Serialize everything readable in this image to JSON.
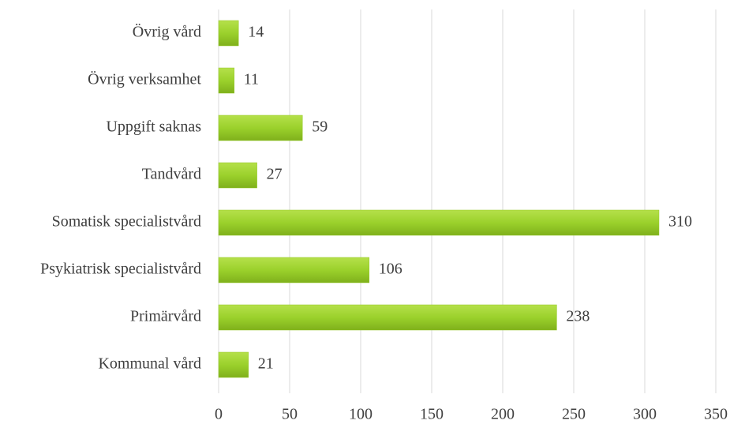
{
  "chart_data": {
    "type": "bar",
    "orientation": "horizontal",
    "categories": [
      "Övrig vård",
      "Övrig verksamhet",
      "Uppgift saknas",
      "Tandvård",
      "Somatisk specialistvård",
      "Psykiatrisk specialistvård",
      "Primärvård",
      "Kommunal vård"
    ],
    "values": [
      14,
      11,
      59,
      27,
      310,
      106,
      238,
      21
    ],
    "color": "#92c824",
    "xlim": [
      0,
      350
    ],
    "xticks": [
      0,
      50,
      100,
      150,
      200,
      250,
      300,
      350
    ],
    "grid": true
  }
}
